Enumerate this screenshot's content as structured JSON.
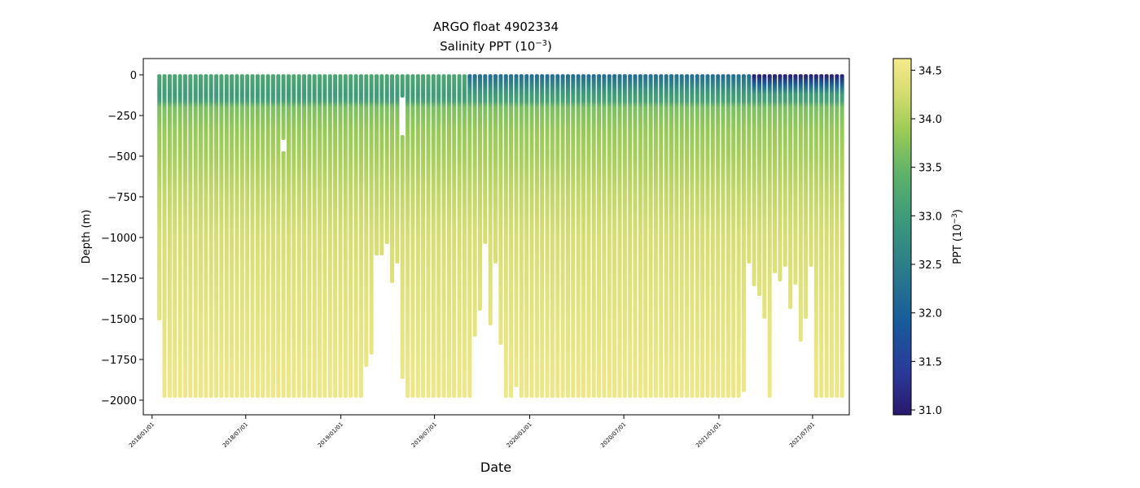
{
  "chart_data": {
    "type": "scatter",
    "title_line1": "ARGO float 4902334",
    "title_line2_prefix": "Salinity PPT (10",
    "title_line2_exp": "−3",
    "title_line2_suffix": ")",
    "xlabel": "Date",
    "ylabel": "Depth (m)",
    "colorbar_label_prefix": "PPT (10",
    "colorbar_label_exp": "−3",
    "colorbar_label_suffix": ")",
    "xlim": [
      "2017-12-15",
      "2021-09-10"
    ],
    "ylim": [
      -2090,
      100
    ],
    "x_ticks": [
      {
        "date": "2018-01-01",
        "label": "2018/01/01"
      },
      {
        "date": "2018-07-01",
        "label": "2018/07/01"
      },
      {
        "date": "2019-01-01",
        "label": "2019/01/01"
      },
      {
        "date": "2019-07-01",
        "label": "2019/07/01"
      },
      {
        "date": "2020-01-01",
        "label": "2020/01/01"
      },
      {
        "date": "2020-07-01",
        "label": "2020/07/01"
      },
      {
        "date": "2021-01-01",
        "label": "2021/01/01"
      },
      {
        "date": "2021-07-01",
        "label": "2021/07/01"
      }
    ],
    "y_ticks": [
      {
        "value": 0,
        "label": "0"
      },
      {
        "value": -250,
        "label": "−250"
      },
      {
        "value": -500,
        "label": "−500"
      },
      {
        "value": -750,
        "label": "−750"
      },
      {
        "value": -1000,
        "label": "−1000"
      },
      {
        "value": -1250,
        "label": "−1250"
      },
      {
        "value": -1500,
        "label": "−1500"
      },
      {
        "value": -1750,
        "label": "−1750"
      },
      {
        "value": -2000,
        "label": "−2000"
      }
    ],
    "colorbar": {
      "vmin": 30.95,
      "vmax": 34.62,
      "colormap": "haline",
      "ticks": [
        {
          "value": 31.0,
          "label": "31.0"
        },
        {
          "value": 31.5,
          "label": "31.5"
        },
        {
          "value": 32.0,
          "label": "32.0"
        },
        {
          "value": 32.5,
          "label": "32.5"
        },
        {
          "value": 33.0,
          "label": "33.0"
        },
        {
          "value": 33.5,
          "label": "33.5"
        },
        {
          "value": 34.0,
          "label": "34.0"
        },
        {
          "value": 34.5,
          "label": "34.5"
        }
      ]
    },
    "profiles": {
      "start_date": "2018-01-15",
      "cycle_days": 10,
      "count": 133,
      "typical_max_depth": -1985,
      "shallow_profiles": [
        {
          "index": 0,
          "max_depth": -1510
        },
        {
          "index": 40,
          "max_depth": -1795
        },
        {
          "index": 41,
          "max_depth": -1720
        },
        {
          "index": 42,
          "max_depth": -1110
        },
        {
          "index": 43,
          "max_depth": -1110
        },
        {
          "index": 44,
          "max_depth": -1040
        },
        {
          "index": 45,
          "max_depth": -1280
        },
        {
          "index": 46,
          "max_depth": -1160
        },
        {
          "index": 47,
          "max_depth": -1870
        },
        {
          "index": 61,
          "max_depth": -1610
        },
        {
          "index": 62,
          "max_depth": -1450
        },
        {
          "index": 63,
          "max_depth": -1040
        },
        {
          "index": 64,
          "max_depth": -1540
        },
        {
          "index": 65,
          "max_depth": -1160
        },
        {
          "index": 66,
          "max_depth": -1660
        },
        {
          "index": 69,
          "max_depth": -1920
        },
        {
          "index": 113,
          "max_depth": -1950
        },
        {
          "index": 114,
          "max_depth": -1160
        },
        {
          "index": 115,
          "max_depth": -1300
        },
        {
          "index": 116,
          "max_depth": -1360
        },
        {
          "index": 117,
          "max_depth": -1500
        },
        {
          "index": 119,
          "max_depth": -1220
        },
        {
          "index": 120,
          "max_depth": -1270
        },
        {
          "index": 121,
          "max_depth": -1180
        },
        {
          "index": 122,
          "max_depth": -1440
        },
        {
          "index": 123,
          "max_depth": -1290
        },
        {
          "index": 124,
          "max_depth": -1640
        },
        {
          "index": 125,
          "max_depth": -1500
        },
        {
          "index": 126,
          "max_depth": -1180
        },
        {
          "index": 132,
          "max_depth": -1985
        }
      ],
      "data_gaps": [
        {
          "index": 24,
          "from": -400,
          "to": -470
        },
        {
          "index": 47,
          "from": -140,
          "to": -370
        }
      ],
      "salinity_profile": [
        {
          "depth": 0,
          "value": 33.2
        },
        {
          "depth": -60,
          "value": 33.1
        },
        {
          "depth": -120,
          "value": 33.0
        },
        {
          "depth": -160,
          "value": 33.1
        },
        {
          "depth": -200,
          "value": 33.65
        },
        {
          "depth": -350,
          "value": 33.85
        },
        {
          "depth": -500,
          "value": 33.95
        },
        {
          "depth": -750,
          "value": 34.15
        },
        {
          "depth": -1000,
          "value": 34.3
        },
        {
          "depth": -1500,
          "value": 34.45
        },
        {
          "depth": -2000,
          "value": 34.55
        }
      ],
      "surface_fresh_period": {
        "from_index": 115,
        "to_index": 132,
        "surface_value": 31.0
      }
    }
  }
}
